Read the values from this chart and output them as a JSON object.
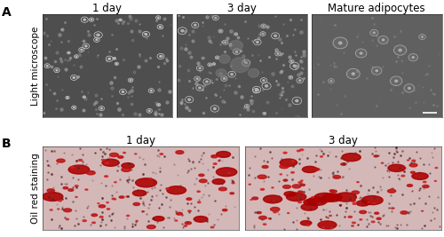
{
  "panel_A_label": "A",
  "panel_B_label": "B",
  "row_A_titles": [
    "1 day",
    "3 day",
    "Mature adipocytes"
  ],
  "row_B_titles": [
    "1 day",
    "3 day"
  ],
  "row_A_ylabel": "Light microscope",
  "row_B_ylabel": "Oil red staining",
  "background_color": "#ffffff",
  "panel_label_fontsize": 10,
  "title_fontsize": 8.5,
  "ylabel_fontsize": 7.5,
  "row_A_bg_dark": "#505050",
  "row_A_bg_mid": "#585858",
  "row_A_bg_light": "#646464",
  "row_B_bg": "#d8c0c0",
  "fig_width": 5.0,
  "fig_height": 2.67
}
